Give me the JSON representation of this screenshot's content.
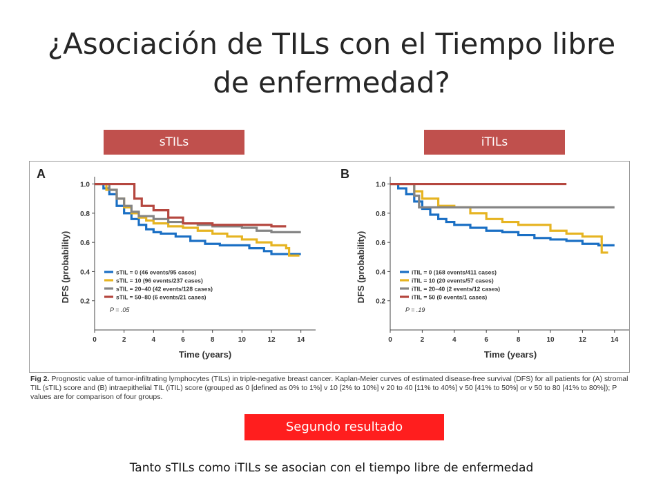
{
  "slide": {
    "title": "¿Asociación de TILs con el Tiempo libre de enfermedad?",
    "tag_left": "sTILs",
    "tag_right": "iTILs",
    "caption_label": "Fig 2.",
    "caption_text": "Prognostic value of tumor-infiltrating lymphocytes (TILs) in triple-negative breast cancer. Kaplan-Meier curves of estimated disease-free survival (DFS) for all patients for (A) stromal TIL (sTIL) score and (B) intraepithelial TIL (iTIL) score (grouped as 0 [defined as 0% to 1%] v 10 [2% to 10%] v 20 to 40 [11% to 40%] v 50 [41% to 50%] or v 50 to 80 [41% to 80%]); P values are for comparison of four groups.",
    "result_badge": "Segundo resultado",
    "conclusion": "Tanto sTILs como iTILs se asocian con el tiempo libre de enfermedad"
  },
  "colors": {
    "tag_bg": "#c0504d",
    "badge_bg": "#ff1e1e",
    "blue": "#1a6fc4",
    "yellow": "#e6b422",
    "gray": "#858585",
    "red": "#b5473f"
  },
  "chart_data": [
    {
      "type": "line",
      "panel_label": "A",
      "xlabel": "Time (years)",
      "ylabel": "DFS (probability)",
      "xlim": [
        0,
        15
      ],
      "ylim": [
        0,
        1.05
      ],
      "xticks": [
        0,
        2,
        4,
        6,
        8,
        10,
        12,
        14
      ],
      "yticks": [
        0.2,
        0.4,
        0.6,
        0.8,
        1.0
      ],
      "ytick_labels": [
        "0.2",
        "0.4",
        "0.6",
        "0.8",
        "1.0"
      ],
      "pvalue": "P = .05",
      "series": [
        {
          "name": "sTIL = 0 (46 events/95 cases)",
          "color": "#1a6fc4",
          "points": [
            [
              0,
              1.0
            ],
            [
              0.6,
              0.97
            ],
            [
              1.0,
              0.93
            ],
            [
              1.5,
              0.85
            ],
            [
              2.0,
              0.8
            ],
            [
              2.5,
              0.76
            ],
            [
              3.0,
              0.72
            ],
            [
              3.5,
              0.69
            ],
            [
              4.0,
              0.67
            ],
            [
              4.5,
              0.66
            ],
            [
              5.5,
              0.64
            ],
            [
              6.5,
              0.61
            ],
            [
              7.5,
              0.59
            ],
            [
              8.5,
              0.58
            ],
            [
              9.5,
              0.58
            ],
            [
              10.5,
              0.56
            ],
            [
              11.5,
              0.54
            ],
            [
              12.0,
              0.52
            ],
            [
              13.0,
              0.52
            ],
            [
              14.0,
              0.52
            ]
          ]
        },
        {
          "name": "sTIL = 10 (96 events/237 cases)",
          "color": "#e6b422",
          "points": [
            [
              0,
              1.0
            ],
            [
              0.8,
              0.96
            ],
            [
              1.5,
              0.9
            ],
            [
              2.0,
              0.84
            ],
            [
              2.5,
              0.8
            ],
            [
              3.0,
              0.77
            ],
            [
              3.5,
              0.75
            ],
            [
              4.0,
              0.73
            ],
            [
              5.0,
              0.71
            ],
            [
              6.0,
              0.7
            ],
            [
              7.0,
              0.68
            ],
            [
              8.0,
              0.66
            ],
            [
              9.0,
              0.64
            ],
            [
              10.0,
              0.62
            ],
            [
              11.0,
              0.6
            ],
            [
              12.0,
              0.58
            ],
            [
              13.0,
              0.56
            ],
            [
              13.2,
              0.51
            ],
            [
              13.9,
              0.51
            ]
          ]
        },
        {
          "name": "sTIL = 20–40 (42 events/128 cases)",
          "color": "#858585",
          "points": [
            [
              0,
              1.0
            ],
            [
              1.0,
              0.96
            ],
            [
              1.5,
              0.9
            ],
            [
              2.0,
              0.85
            ],
            [
              2.5,
              0.81
            ],
            [
              3.0,
              0.78
            ],
            [
              4.0,
              0.76
            ],
            [
              5.0,
              0.74
            ],
            [
              6.0,
              0.73
            ],
            [
              7.0,
              0.72
            ],
            [
              8.0,
              0.71
            ],
            [
              9.0,
              0.71
            ],
            [
              10.0,
              0.7
            ],
            [
              11.0,
              0.68
            ],
            [
              12.0,
              0.67
            ],
            [
              14.0,
              0.67
            ]
          ]
        },
        {
          "name": "sTIL = 50–80 (6 events/21 cases)",
          "color": "#b5473f",
          "points": [
            [
              0,
              1.0
            ],
            [
              1.2,
              1.0
            ],
            [
              2.5,
              1.0
            ],
            [
              2.7,
              0.9
            ],
            [
              3.2,
              0.85
            ],
            [
              4.0,
              0.82
            ],
            [
              5.0,
              0.77
            ],
            [
              6.0,
              0.73
            ],
            [
              8.0,
              0.72
            ],
            [
              10.0,
              0.72
            ],
            [
              12.0,
              0.71
            ],
            [
              13.0,
              0.71
            ]
          ]
        }
      ]
    },
    {
      "type": "line",
      "panel_label": "B",
      "xlabel": "Time (years)",
      "ylabel": "DFS (probability)",
      "xlim": [
        0,
        15
      ],
      "ylim": [
        0,
        1.05
      ],
      "xticks": [
        0,
        2,
        4,
        6,
        8,
        10,
        12,
        14
      ],
      "yticks": [
        0.2,
        0.4,
        0.6,
        0.8,
        1.0
      ],
      "ytick_labels": [
        "0.2",
        "0.4",
        "0.6",
        "0.8",
        "1.0"
      ],
      "pvalue": "P = .19",
      "series": [
        {
          "name": "iTIL = 0 (168 events/411 cases)",
          "color": "#1a6fc4",
          "points": [
            [
              0,
              1.0
            ],
            [
              0.5,
              0.97
            ],
            [
              1.0,
              0.93
            ],
            [
              1.5,
              0.88
            ],
            [
              2.0,
              0.83
            ],
            [
              2.5,
              0.79
            ],
            [
              3.0,
              0.76
            ],
            [
              3.5,
              0.74
            ],
            [
              4.0,
              0.72
            ],
            [
              5.0,
              0.7
            ],
            [
              6.0,
              0.68
            ],
            [
              7.0,
              0.67
            ],
            [
              8.0,
              0.65
            ],
            [
              9.0,
              0.63
            ],
            [
              10.0,
              0.62
            ],
            [
              11.0,
              0.61
            ],
            [
              12.0,
              0.59
            ],
            [
              13.0,
              0.58
            ],
            [
              14.0,
              0.58
            ]
          ]
        },
        {
          "name": "iTIL = 10 (20 events/57 cases)",
          "color": "#e6b422",
          "points": [
            [
              0,
              1.0
            ],
            [
              1.0,
              1.0
            ],
            [
              1.5,
              0.95
            ],
            [
              2.0,
              0.9
            ],
            [
              3.0,
              0.85
            ],
            [
              4.0,
              0.84
            ],
            [
              5.0,
              0.8
            ],
            [
              6.0,
              0.76
            ],
            [
              7.0,
              0.74
            ],
            [
              8.0,
              0.72
            ],
            [
              9.0,
              0.72
            ],
            [
              10.0,
              0.68
            ],
            [
              11.0,
              0.66
            ],
            [
              12.0,
              0.64
            ],
            [
              13.0,
              0.64
            ],
            [
              13.2,
              0.53
            ],
            [
              13.6,
              0.53
            ]
          ]
        },
        {
          "name": "iTIL = 20–40 (2 events/12 cases)",
          "color": "#858585",
          "points": [
            [
              0,
              1.0
            ],
            [
              1.4,
              1.0
            ],
            [
              1.5,
              0.92
            ],
            [
              1.8,
              0.84
            ],
            [
              14.0,
              0.84
            ]
          ]
        },
        {
          "name": "iTIL = 50 (0 events/1 cases)",
          "color": "#b5473f",
          "points": [
            [
              0,
              1.0
            ],
            [
              11.0,
              1.0
            ]
          ]
        }
      ]
    }
  ]
}
